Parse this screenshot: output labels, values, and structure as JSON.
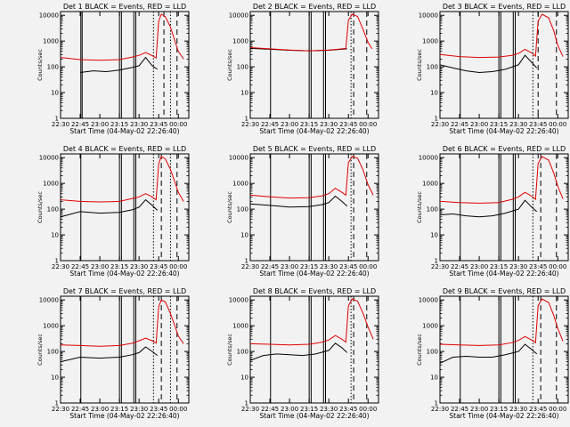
{
  "figure": {
    "background": "#f2f2f2",
    "colors": {
      "events": "#000000",
      "lld": "#e00000"
    }
  },
  "chart_data": [
    {
      "type": "line",
      "title": "Det 1 BLACK = Events, RED = LLD",
      "ylabel": "Counts/sec",
      "xlabel": "Start Time (04-May-02 22:26:40)",
      "x_ticks": [
        "22:30",
        "22:45",
        "23:00",
        "23:15",
        "23:30",
        "23:45",
        "00:00"
      ],
      "y_ticks": [
        "1",
        "10",
        "100",
        "1000",
        "10000"
      ],
      "y_scale": "log",
      "ylim": [
        1,
        14000
      ],
      "xlim": [
        "22:30",
        "00:08"
      ],
      "solid_markers": [
        "22:45:30",
        "22:46:30",
        "23:15:00",
        "23:16:30",
        "23:26:00",
        "23:27:30"
      ],
      "dotted_markers": [
        "23:41",
        "23:54"
      ],
      "dashed_markers": [
        "23:49",
        "23:59"
      ],
      "series": [
        {
          "name": "Events",
          "x": [
            "22:45",
            "22:55",
            "23:05",
            "23:15",
            "23:25",
            "23:30",
            "23:35",
            "23:40",
            "23:44"
          ],
          "y": [
            60,
            70,
            65,
            75,
            95,
            110,
            230,
            110,
            80
          ]
        },
        {
          "name": "LLD",
          "x": [
            "22:30",
            "22:45",
            "23:00",
            "23:15",
            "23:25",
            "23:30",
            "23:35",
            "23:40",
            "23:43",
            "23:45",
            "23:47",
            "23:50",
            "23:54",
            "23:58",
            "00:00",
            "00:04"
          ],
          "y": [
            230,
            190,
            180,
            190,
            240,
            280,
            360,
            270,
            220,
            6000,
            11000,
            9000,
            3500,
            800,
            400,
            200
          ]
        }
      ]
    },
    {
      "type": "line",
      "title": "Det 2 BLACK = Events, RED = LLD",
      "ylabel": "Counts/sec",
      "xlabel": "Start Time (04-May-02 22:26:40)",
      "x_ticks": [
        "22:30",
        "22:45",
        "23:00",
        "23:15",
        "23:30",
        "23:45",
        "00:00"
      ],
      "y_ticks": [
        "1",
        "10",
        "100",
        "1000",
        "10000"
      ],
      "y_scale": "log",
      "ylim": [
        1,
        14000
      ],
      "xlim": [
        "22:30",
        "00:08"
      ],
      "solid_markers": [
        "22:45:30",
        "23:15:00",
        "23:16:30",
        "23:26:00",
        "23:27:30"
      ],
      "dotted_markers": [
        "23:47"
      ],
      "dashed_markers": [
        "23:49",
        "23:59"
      ],
      "series": [
        {
          "name": "Events",
          "x": [
            "22:30",
            "22:45",
            "23:00",
            "23:15",
            "23:30",
            "23:40",
            "23:44"
          ],
          "y": [
            520,
            480,
            440,
            420,
            440,
            480,
            500
          ]
        },
        {
          "name": "LLD",
          "x": [
            "22:30",
            "22:45",
            "23:00",
            "23:15",
            "23:30",
            "23:40",
            "23:43",
            "23:45",
            "23:48",
            "23:52",
            "23:56",
            "00:00",
            "00:03"
          ],
          "y": [
            560,
            500,
            450,
            420,
            450,
            500,
            520,
            6500,
            11000,
            9000,
            3000,
            900,
            500
          ]
        }
      ]
    },
    {
      "type": "line",
      "title": "Det 3 BLACK = Events, RED = LLD",
      "ylabel": "Counts/sec",
      "xlabel": "Start Time (04-May-02 22:26:40)",
      "x_ticks": [
        "22:30",
        "22:45",
        "23:00",
        "23:15",
        "23:30",
        "23:45",
        "00:00"
      ],
      "y_ticks": [
        "1",
        "10",
        "100",
        "1000",
        "10000"
      ],
      "y_scale": "log",
      "ylim": [
        1,
        14000
      ],
      "xlim": [
        "22:30",
        "00:08"
      ],
      "solid_markers": [
        "22:45:30",
        "23:15:00",
        "23:16:30",
        "23:26:00",
        "23:27:30"
      ],
      "dotted_markers": [
        "23:41"
      ],
      "dashed_markers": [
        "23:45",
        "23:59"
      ],
      "series": [
        {
          "name": "Events",
          "x": [
            "22:30",
            "22:40",
            "22:50",
            "23:00",
            "23:10",
            "23:20",
            "23:30",
            "23:35",
            "23:40",
            "23:44"
          ],
          "y": [
            120,
            90,
            70,
            60,
            65,
            80,
            120,
            280,
            150,
            90
          ]
        },
        {
          "name": "LLD",
          "x": [
            "22:30",
            "22:45",
            "23:00",
            "23:15",
            "23:25",
            "23:30",
            "23:35",
            "23:40",
            "23:43",
            "23:45",
            "23:48",
            "23:53",
            "23:57",
            "00:00",
            "00:04"
          ],
          "y": [
            300,
            250,
            230,
            240,
            280,
            330,
            480,
            350,
            260,
            6000,
            11000,
            8000,
            2500,
            700,
            250
          ]
        }
      ]
    },
    {
      "type": "line",
      "title": "Det 4 BLACK = Events, RED = LLD",
      "ylabel": "Counts/sec",
      "xlabel": "Start Time (04-May-02 22:26:40)",
      "x_ticks": [
        "22:30",
        "22:45",
        "23:00",
        "23:15",
        "23:30",
        "23:45",
        "00:00"
      ],
      "y_ticks": [
        "1",
        "10",
        "100",
        "1000",
        "10000"
      ],
      "y_scale": "log",
      "ylim": [
        1,
        14000
      ],
      "xlim": [
        "22:30",
        "00:08"
      ],
      "solid_markers": [
        "22:45:30",
        "23:15:00",
        "23:16:30",
        "23:26:00",
        "23:27:30"
      ],
      "dotted_markers": [
        "23:41",
        "23:54"
      ],
      "dashed_markers": [
        "23:47",
        "23:59"
      ],
      "series": [
        {
          "name": "Events",
          "x": [
            "22:30",
            "22:45",
            "23:00",
            "23:15",
            "23:25",
            "23:30",
            "23:35",
            "23:40",
            "23:44"
          ],
          "y": [
            50,
            80,
            70,
            75,
            95,
            120,
            230,
            140,
            90
          ]
        },
        {
          "name": "LLD",
          "x": [
            "22:30",
            "22:45",
            "23:00",
            "23:15",
            "23:25",
            "23:30",
            "23:35",
            "23:40",
            "23:43",
            "23:45",
            "23:47",
            "23:50",
            "23:54",
            "23:58",
            "00:00",
            "00:04"
          ],
          "y": [
            230,
            200,
            190,
            200,
            260,
            300,
            400,
            300,
            230,
            6000,
            11000,
            9000,
            3500,
            900,
            450,
            200
          ]
        }
      ]
    },
    {
      "type": "line",
      "title": "Det 5 BLACK = Events, RED = LLD",
      "ylabel": "Counts/sec",
      "xlabel": "Start Time (04-May-02 22:26:40)",
      "x_ticks": [
        "22:30",
        "22:45",
        "23:00",
        "23:15",
        "23:30",
        "23:45",
        "00:00"
      ],
      "y_ticks": [
        "1",
        "10",
        "100",
        "1000",
        "10000"
      ],
      "y_scale": "log",
      "ylim": [
        1,
        14000
      ],
      "xlim": [
        "22:30",
        "00:08"
      ],
      "solid_markers": [
        "22:45:30",
        "23:15:00",
        "23:16:30",
        "23:26:00",
        "23:27:30"
      ],
      "dotted_markers": [
        "23:47"
      ],
      "dashed_markers": [
        "23:49",
        "23:59"
      ],
      "series": [
        {
          "name": "Events",
          "x": [
            "22:30",
            "22:45",
            "23:00",
            "23:15",
            "23:25",
            "23:30",
            "23:35",
            "23:40",
            "23:44"
          ],
          "y": [
            160,
            140,
            120,
            125,
            150,
            180,
            320,
            200,
            130
          ]
        },
        {
          "name": "LLD",
          "x": [
            "22:30",
            "22:45",
            "23:00",
            "23:15",
            "23:25",
            "23:30",
            "23:35",
            "23:40",
            "23:43",
            "23:45",
            "23:48",
            "23:52",
            "23:56",
            "00:00",
            "00:04"
          ],
          "y": [
            350,
            300,
            270,
            280,
            330,
            400,
            650,
            450,
            350,
            6500,
            11000,
            9500,
            3500,
            900,
            350
          ]
        }
      ]
    },
    {
      "type": "line",
      "title": "Det 6 BLACK = Events, RED = LLD",
      "ylabel": "Counts/sec",
      "xlabel": "Start Time (04-May-02 22:26:40)",
      "x_ticks": [
        "22:30",
        "22:45",
        "23:00",
        "23:15",
        "23:30",
        "23:45",
        "00:00"
      ],
      "y_ticks": [
        "1",
        "10",
        "100",
        "1000",
        "10000"
      ],
      "y_scale": "log",
      "ylim": [
        1,
        14000
      ],
      "xlim": [
        "22:30",
        "00:08"
      ],
      "solid_markers": [
        "22:45:30",
        "23:15:00",
        "23:16:30",
        "23:26:00",
        "23:27:30"
      ],
      "dotted_markers": [
        "23:41"
      ],
      "dashed_markers": [
        "23:47",
        "23:59"
      ],
      "series": [
        {
          "name": "Events",
          "x": [
            "22:30",
            "22:40",
            "22:50",
            "23:00",
            "23:10",
            "23:20",
            "23:30",
            "23:35",
            "23:40",
            "23:44"
          ],
          "y": [
            60,
            65,
            55,
            50,
            55,
            70,
            100,
            220,
            120,
            80
          ]
        },
        {
          "name": "LLD",
          "x": [
            "22:30",
            "22:45",
            "23:00",
            "23:15",
            "23:25",
            "23:30",
            "23:35",
            "23:40",
            "23:43",
            "23:45",
            "23:48",
            "23:53",
            "23:57",
            "00:00",
            "00:04"
          ],
          "y": [
            200,
            180,
            170,
            180,
            240,
            300,
            450,
            320,
            240,
            6000,
            11000,
            8000,
            2500,
            800,
            250
          ]
        }
      ]
    },
    {
      "type": "line",
      "title": "Det 7 BLACK = Events, RED = LLD",
      "ylabel": "Counts/sec",
      "xlabel": "Start Time (04-May-02 22:26:40)",
      "x_ticks": [
        "22:30",
        "22:45",
        "23:00",
        "23:15",
        "23:30",
        "23:45",
        "00:00"
      ],
      "y_ticks": [
        "1",
        "10",
        "100",
        "1000",
        "10000"
      ],
      "y_scale": "log",
      "ylim": [
        1,
        14000
      ],
      "xlim": [
        "22:30",
        "00:08"
      ],
      "solid_markers": [
        "22:45:30",
        "23:15:00",
        "23:16:30",
        "23:26:00",
        "23:27:30"
      ],
      "dotted_markers": [
        "23:41",
        "23:54"
      ],
      "dashed_markers": [
        "23:47",
        "23:59"
      ],
      "series": [
        {
          "name": "Events",
          "x": [
            "22:30",
            "22:45",
            "23:00",
            "23:15",
            "23:25",
            "23:30",
            "23:35",
            "23:40",
            "23:44"
          ],
          "y": [
            40,
            60,
            55,
            60,
            75,
            90,
            150,
            100,
            70
          ]
        },
        {
          "name": "LLD",
          "x": [
            "22:30",
            "22:45",
            "23:00",
            "23:15",
            "23:25",
            "23:30",
            "23:35",
            "23:40",
            "23:43",
            "23:45",
            "23:47",
            "23:50",
            "23:54",
            "23:58",
            "00:00",
            "00:04"
          ],
          "y": [
            180,
            170,
            160,
            170,
            210,
            260,
            330,
            260,
            210,
            5500,
            10000,
            8500,
            3000,
            800,
            400,
            200
          ]
        }
      ]
    },
    {
      "type": "line",
      "title": "Det 8 BLACK = Events, RED = LLD",
      "ylabel": "Counts/sec",
      "xlabel": "Start Time (04-May-02 22:26:40)",
      "x_ticks": [
        "22:30",
        "22:45",
        "23:00",
        "23:15",
        "23:30",
        "23:45",
        "00:00"
      ],
      "y_ticks": [
        "1",
        "10",
        "100",
        "1000",
        "10000"
      ],
      "y_scale": "log",
      "ylim": [
        1,
        14000
      ],
      "xlim": [
        "22:30",
        "00:08"
      ],
      "solid_markers": [
        "22:45:30",
        "23:15:00",
        "23:16:30",
        "23:26:00",
        "23:27:30"
      ],
      "dotted_markers": [
        "23:47"
      ],
      "dashed_markers": [
        "23:49",
        "23:59"
      ],
      "series": [
        {
          "name": "Events",
          "x": [
            "22:30",
            "22:40",
            "22:50",
            "23:00",
            "23:10",
            "23:20",
            "23:30",
            "23:35",
            "23:40",
            "23:44"
          ],
          "y": [
            45,
            70,
            80,
            75,
            70,
            80,
            110,
            210,
            140,
            90
          ]
        },
        {
          "name": "LLD",
          "x": [
            "22:30",
            "22:45",
            "23:00",
            "23:15",
            "23:25",
            "23:30",
            "23:35",
            "23:40",
            "23:43",
            "23:45",
            "23:48",
            "23:52",
            "23:56",
            "00:00",
            "00:04"
          ],
          "y": [
            200,
            190,
            180,
            190,
            230,
            280,
            420,
            300,
            230,
            6000,
            11000,
            9000,
            3200,
            900,
            300
          ]
        }
      ]
    },
    {
      "type": "line",
      "title": "Det 9 BLACK = Events, RED = LLD",
      "ylabel": "Counts/sec",
      "xlabel": "Start Time (04-May-02 22:26:40)",
      "x_ticks": [
        "22:30",
        "22:45",
        "23:00",
        "23:15",
        "23:30",
        "23:45",
        "00:00"
      ],
      "y_ticks": [
        "1",
        "10",
        "100",
        "1000",
        "10000"
      ],
      "y_scale": "log",
      "ylim": [
        1,
        14000
      ],
      "xlim": [
        "22:30",
        "00:08"
      ],
      "solid_markers": [
        "22:45:30",
        "23:15:00",
        "23:16:30",
        "23:26:00",
        "23:27:30"
      ],
      "dotted_markers": [
        "23:41"
      ],
      "dashed_markers": [
        "23:47",
        "23:59"
      ],
      "series": [
        {
          "name": "Events",
          "x": [
            "22:30",
            "22:40",
            "22:50",
            "23:00",
            "23:10",
            "23:20",
            "23:30",
            "23:35",
            "23:40",
            "23:44"
          ],
          "y": [
            35,
            60,
            65,
            60,
            60,
            75,
            100,
            190,
            120,
            80
          ]
        },
        {
          "name": "LLD",
          "x": [
            "22:30",
            "22:45",
            "23:00",
            "23:15",
            "23:25",
            "23:30",
            "23:35",
            "23:40",
            "23:43",
            "23:45",
            "23:48",
            "23:53",
            "23:57",
            "00:00",
            "00:04"
          ],
          "y": [
            190,
            180,
            170,
            180,
            220,
            270,
            380,
            280,
            220,
            6000,
            11000,
            8000,
            2500,
            800,
            250
          ]
        }
      ]
    }
  ]
}
